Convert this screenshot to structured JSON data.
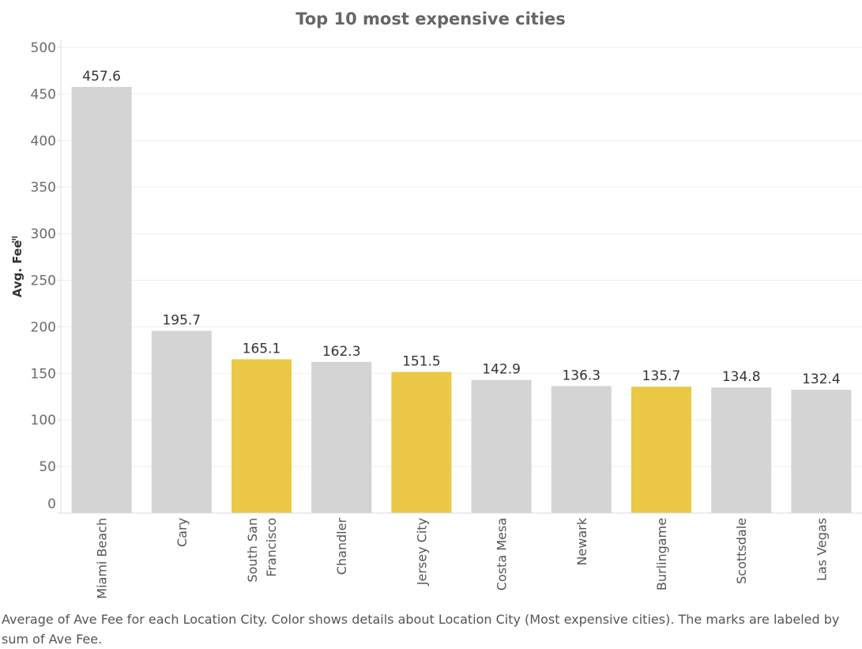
{
  "chart_data": {
    "type": "bar",
    "title": "Top 10 most expensive cities",
    "ylabel": "Avg. Fee",
    "xlabel": "",
    "ylim": [
      0,
      500
    ],
    "yticks": [
      0,
      50,
      100,
      150,
      200,
      250,
      300,
      350,
      400,
      450,
      500
    ],
    "grid": true,
    "categories": [
      [
        "Miami Beach"
      ],
      [
        "Cary"
      ],
      [
        "South San",
        "Francisco"
      ],
      [
        "Chandler"
      ],
      [
        "Jersey City"
      ],
      [
        "Costa Mesa"
      ],
      [
        "Newark"
      ],
      [
        "Burlingame"
      ],
      [
        "Scottsdale"
      ],
      [
        "Las Vegas"
      ]
    ],
    "values": [
      457.6,
      195.7,
      165.1,
      162.3,
      151.5,
      142.9,
      136.3,
      135.7,
      134.8,
      132.4
    ],
    "labels": [
      "457.6",
      "195.7",
      "165.1",
      "162.3",
      "151.5",
      "142.9",
      "136.3",
      "135.7",
      "134.8",
      "132.4"
    ],
    "highlighted": [
      false,
      false,
      true,
      false,
      true,
      false,
      false,
      true,
      false,
      false
    ],
    "colors": {
      "default": "#d4d4d4",
      "highlight": "#ebc845",
      "gridline": "#efefef"
    }
  },
  "caption": "Average of Ave Fee for each Location City.  Color shows details about Location City (Most expensive cities).  The marks are labeled by sum of Ave Fee."
}
